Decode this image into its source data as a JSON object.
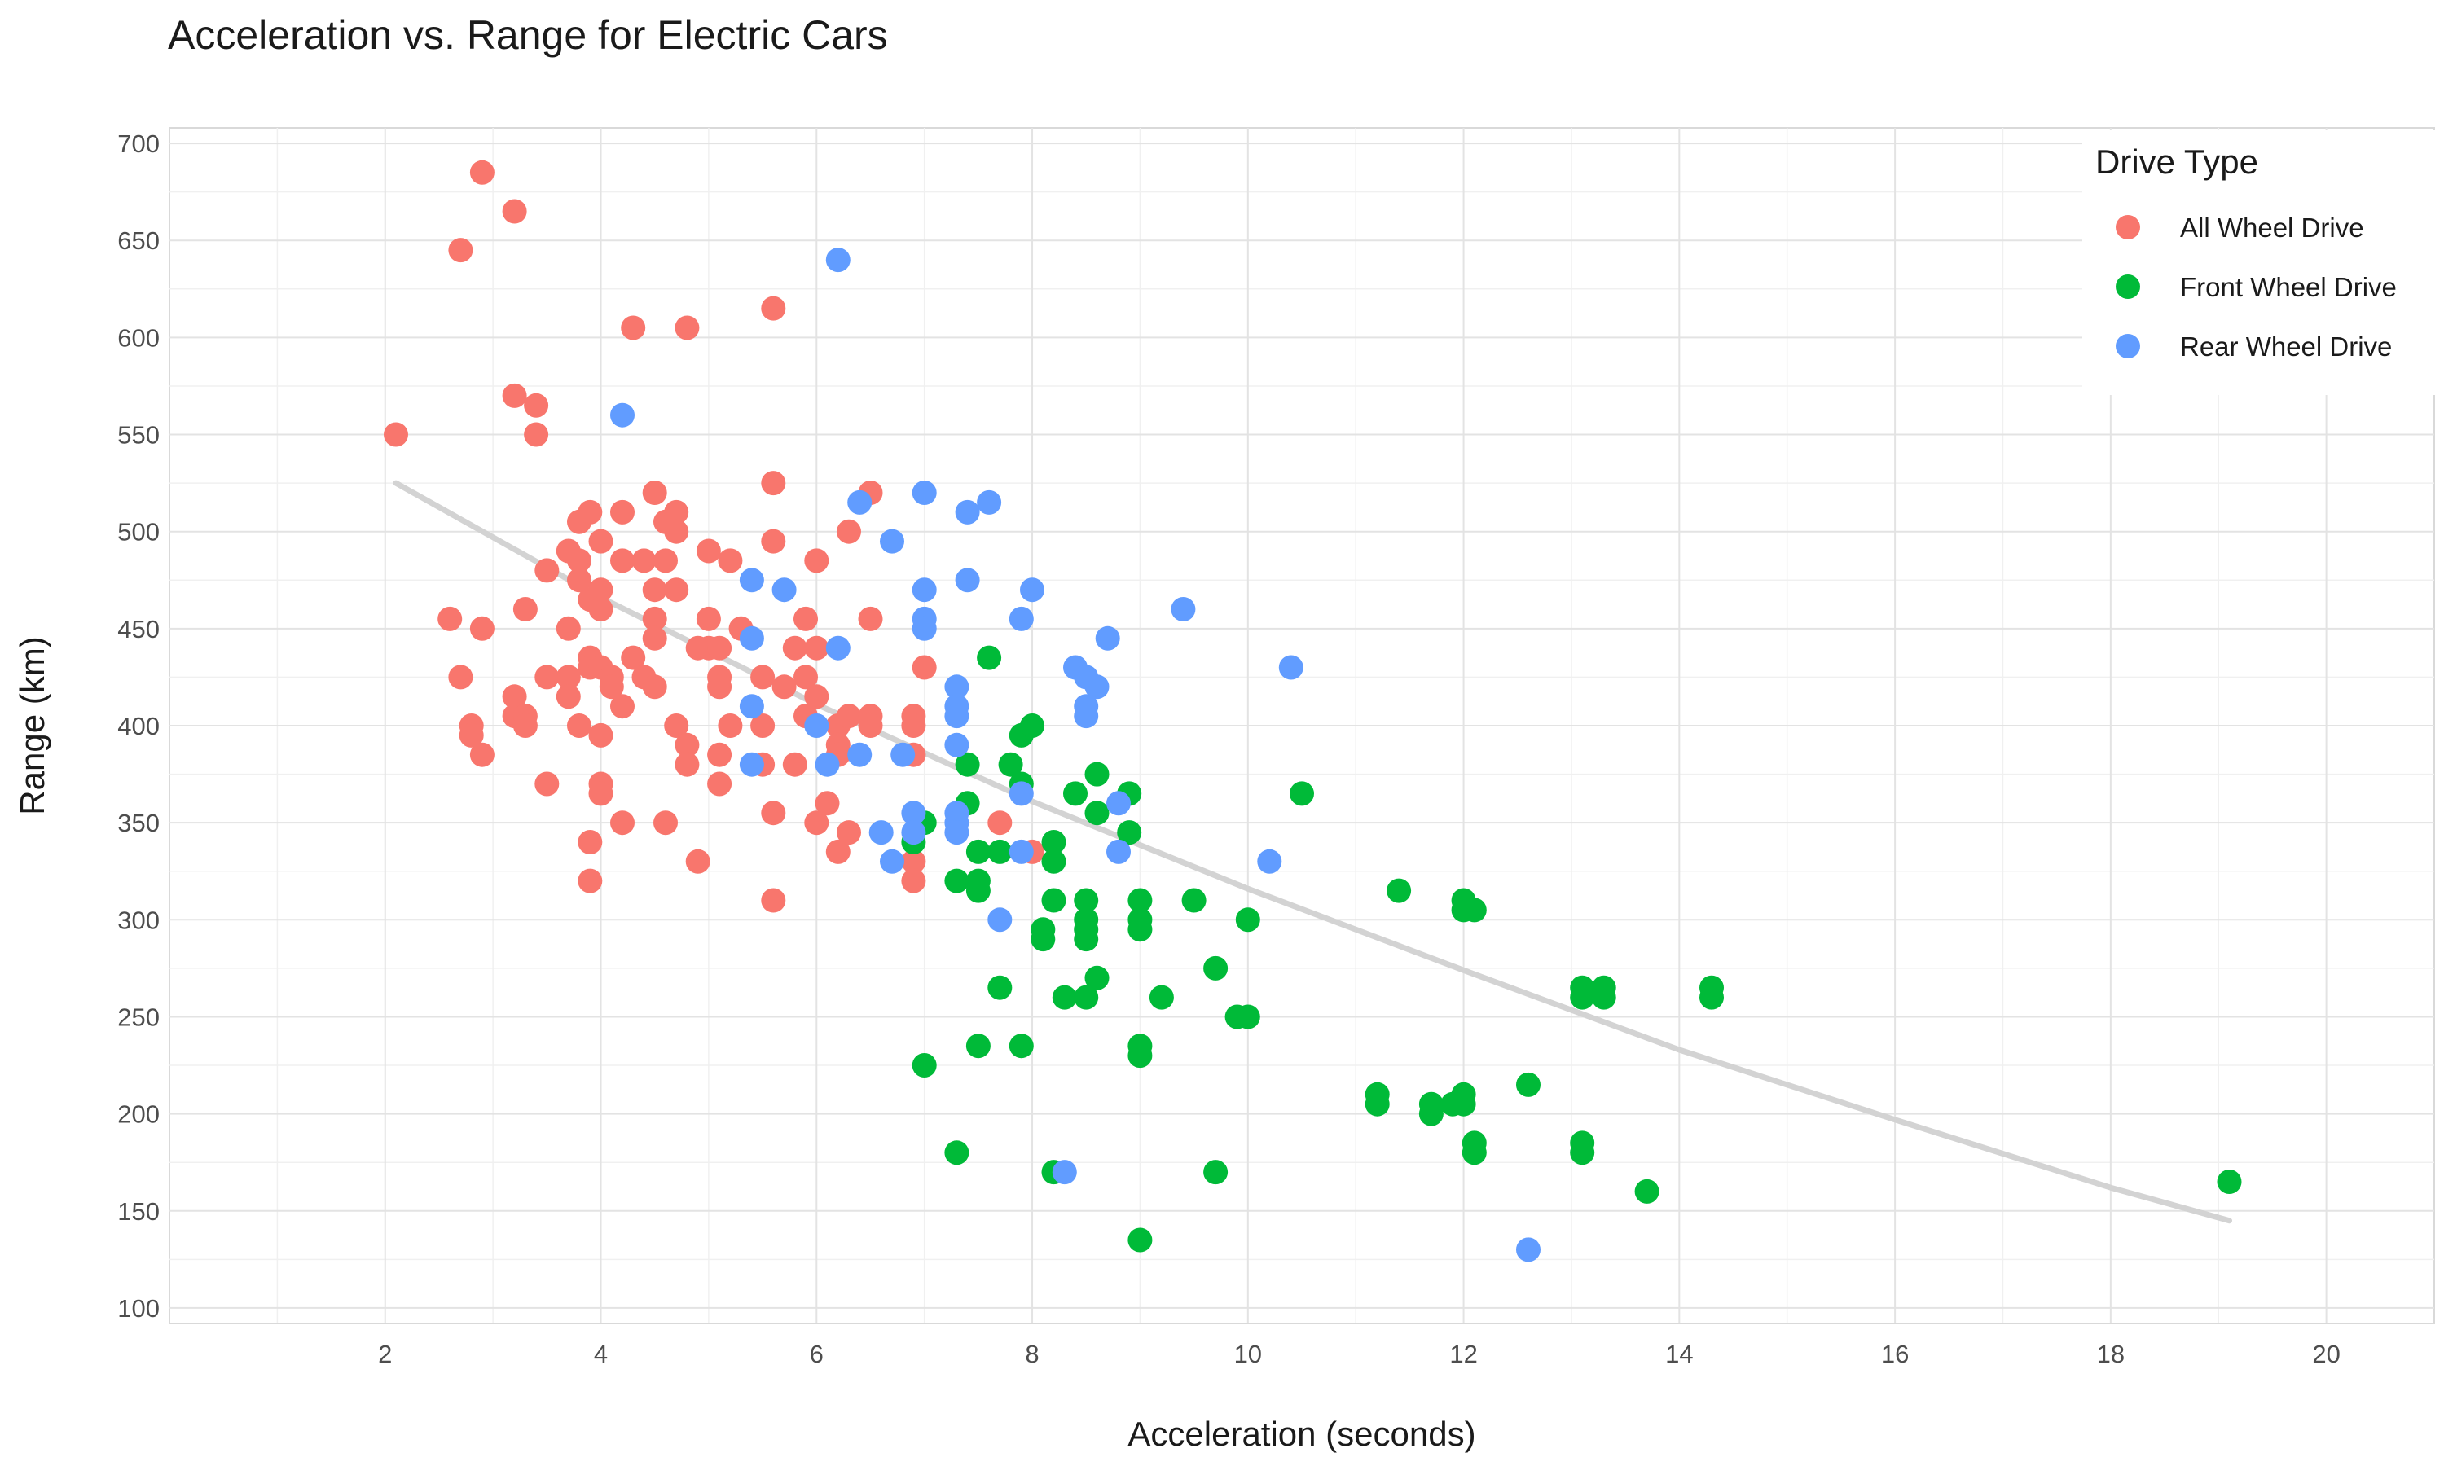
{
  "chart_data": {
    "type": "scatter",
    "title": "Acceleration vs. Range for Electric Cars",
    "xlabel": "Acceleration (seconds)",
    "ylabel": "Range (km)",
    "xlim": [
      0.0,
      21.0
    ],
    "ylim": [
      92,
      708
    ],
    "x_ticks": [
      2,
      4,
      6,
      8,
      10,
      12,
      14,
      16,
      18,
      20
    ],
    "y_ticks": [
      100,
      150,
      200,
      250,
      300,
      350,
      400,
      450,
      500,
      550,
      600,
      650,
      700
    ],
    "grid": true,
    "legend": {
      "title": "Drive Type",
      "placement": "top-right"
    },
    "series": [
      {
        "name": "All Wheel Drive",
        "color": "#F8766D",
        "points": [
          [
            2.1,
            550
          ],
          [
            2.6,
            455
          ],
          [
            2.7,
            645
          ],
          [
            2.7,
            425
          ],
          [
            2.8,
            400
          ],
          [
            2.8,
            395
          ],
          [
            2.9,
            685
          ],
          [
            2.9,
            450
          ],
          [
            2.9,
            385
          ],
          [
            3.2,
            665
          ],
          [
            3.2,
            570
          ],
          [
            3.2,
            415
          ],
          [
            3.2,
            405
          ],
          [
            3.3,
            460
          ],
          [
            3.3,
            405
          ],
          [
            3.3,
            400
          ],
          [
            3.4,
            565
          ],
          [
            3.4,
            550
          ],
          [
            3.5,
            480
          ],
          [
            3.5,
            425
          ],
          [
            3.5,
            370
          ],
          [
            3.7,
            490
          ],
          [
            3.7,
            450
          ],
          [
            3.7,
            425
          ],
          [
            3.7,
            415
          ],
          [
            3.8,
            505
          ],
          [
            3.8,
            485
          ],
          [
            3.8,
            475
          ],
          [
            3.8,
            400
          ],
          [
            3.9,
            510
          ],
          [
            3.9,
            465
          ],
          [
            3.9,
            435
          ],
          [
            3.9,
            430
          ],
          [
            3.9,
            340
          ],
          [
            3.9,
            320
          ],
          [
            4.0,
            495
          ],
          [
            4.0,
            470
          ],
          [
            4.0,
            460
          ],
          [
            4.0,
            430
          ],
          [
            4.0,
            395
          ],
          [
            4.0,
            370
          ],
          [
            4.0,
            365
          ],
          [
            4.1,
            425
          ],
          [
            4.1,
            420
          ],
          [
            4.2,
            510
          ],
          [
            4.2,
            485
          ],
          [
            4.2,
            410
          ],
          [
            4.2,
            350
          ],
          [
            4.3,
            605
          ],
          [
            4.3,
            435
          ],
          [
            4.4,
            485
          ],
          [
            4.4,
            425
          ],
          [
            4.5,
            520
          ],
          [
            4.5,
            470
          ],
          [
            4.5,
            455
          ],
          [
            4.5,
            445
          ],
          [
            4.5,
            420
          ],
          [
            4.6,
            505
          ],
          [
            4.6,
            485
          ],
          [
            4.6,
            350
          ],
          [
            4.7,
            510
          ],
          [
            4.7,
            500
          ],
          [
            4.7,
            470
          ],
          [
            4.7,
            400
          ],
          [
            4.8,
            605
          ],
          [
            4.8,
            390
          ],
          [
            4.8,
            380
          ],
          [
            4.9,
            440
          ],
          [
            4.9,
            330
          ],
          [
            5.0,
            490
          ],
          [
            5.0,
            455
          ],
          [
            5.0,
            440
          ],
          [
            5.1,
            440
          ],
          [
            5.1,
            425
          ],
          [
            5.1,
            420
          ],
          [
            5.1,
            385
          ],
          [
            5.1,
            370
          ],
          [
            5.2,
            485
          ],
          [
            5.2,
            400
          ],
          [
            5.3,
            450
          ],
          [
            5.5,
            425
          ],
          [
            5.5,
            400
          ],
          [
            5.5,
            380
          ],
          [
            5.6,
            615
          ],
          [
            5.6,
            525
          ],
          [
            5.6,
            495
          ],
          [
            5.6,
            355
          ],
          [
            5.6,
            310
          ],
          [
            5.7,
            420
          ],
          [
            5.8,
            440
          ],
          [
            5.8,
            380
          ],
          [
            5.9,
            455
          ],
          [
            5.9,
            425
          ],
          [
            5.9,
            405
          ],
          [
            6.0,
            485
          ],
          [
            6.0,
            440
          ],
          [
            6.0,
            415
          ],
          [
            6.0,
            350
          ],
          [
            6.1,
            360
          ],
          [
            6.2,
            400
          ],
          [
            6.2,
            390
          ],
          [
            6.2,
            385
          ],
          [
            6.2,
            335
          ],
          [
            6.3,
            500
          ],
          [
            6.3,
            405
          ],
          [
            6.3,
            345
          ],
          [
            6.5,
            520
          ],
          [
            6.5,
            455
          ],
          [
            6.5,
            405
          ],
          [
            6.5,
            400
          ],
          [
            6.9,
            405
          ],
          [
            6.9,
            400
          ],
          [
            6.9,
            385
          ],
          [
            6.9,
            330
          ],
          [
            6.9,
            320
          ],
          [
            7.0,
            430
          ],
          [
            7.7,
            350
          ],
          [
            8.0,
            335
          ]
        ]
      },
      {
        "name": "Front Wheel Drive",
        "color": "#00BA38",
        "points": [
          [
            6.9,
            340
          ],
          [
            7.0,
            350
          ],
          [
            7.0,
            225
          ],
          [
            7.3,
            320
          ],
          [
            7.3,
            180
          ],
          [
            7.4,
            380
          ],
          [
            7.4,
            360
          ],
          [
            7.5,
            335
          ],
          [
            7.5,
            320
          ],
          [
            7.5,
            315
          ],
          [
            7.5,
            235
          ],
          [
            7.6,
            435
          ],
          [
            7.7,
            335
          ],
          [
            7.7,
            265
          ],
          [
            7.8,
            380
          ],
          [
            7.9,
            395
          ],
          [
            7.9,
            370
          ],
          [
            7.9,
            235
          ],
          [
            8.0,
            400
          ],
          [
            8.1,
            295
          ],
          [
            8.1,
            290
          ],
          [
            8.2,
            340
          ],
          [
            8.2,
            330
          ],
          [
            8.2,
            310
          ],
          [
            8.2,
            170
          ],
          [
            8.3,
            260
          ],
          [
            8.4,
            365
          ],
          [
            8.5,
            310
          ],
          [
            8.5,
            300
          ],
          [
            8.5,
            295
          ],
          [
            8.5,
            290
          ],
          [
            8.5,
            260
          ],
          [
            8.6,
            375
          ],
          [
            8.6,
            355
          ],
          [
            8.6,
            270
          ],
          [
            8.9,
            365
          ],
          [
            8.9,
            345
          ],
          [
            9.0,
            310
          ],
          [
            9.0,
            300
          ],
          [
            9.0,
            295
          ],
          [
            9.0,
            235
          ],
          [
            9.0,
            230
          ],
          [
            9.0,
            135
          ],
          [
            9.2,
            260
          ],
          [
            9.5,
            310
          ],
          [
            9.7,
            275
          ],
          [
            9.7,
            170
          ],
          [
            9.9,
            250
          ],
          [
            10.0,
            300
          ],
          [
            10.0,
            250
          ],
          [
            10.5,
            365
          ],
          [
            11.2,
            210
          ],
          [
            11.2,
            205
          ],
          [
            11.4,
            315
          ],
          [
            11.7,
            205
          ],
          [
            11.7,
            200
          ],
          [
            11.9,
            205
          ],
          [
            12.0,
            310
          ],
          [
            12.0,
            305
          ],
          [
            12.0,
            210
          ],
          [
            12.0,
            205
          ],
          [
            12.1,
            305
          ],
          [
            12.1,
            185
          ],
          [
            12.1,
            180
          ],
          [
            12.6,
            215
          ],
          [
            13.1,
            265
          ],
          [
            13.1,
            260
          ],
          [
            13.1,
            185
          ],
          [
            13.1,
            180
          ],
          [
            13.3,
            265
          ],
          [
            13.3,
            260
          ],
          [
            13.7,
            160
          ],
          [
            14.3,
            265
          ],
          [
            14.3,
            260
          ],
          [
            19.1,
            165
          ]
        ]
      },
      {
        "name": "Rear Wheel Drive",
        "color": "#619CFF",
        "points": [
          [
            4.2,
            560
          ],
          [
            5.4,
            475
          ],
          [
            5.4,
            445
          ],
          [
            5.4,
            410
          ],
          [
            5.4,
            380
          ],
          [
            5.7,
            470
          ],
          [
            6.0,
            400
          ],
          [
            6.1,
            380
          ],
          [
            6.2,
            640
          ],
          [
            6.2,
            440
          ],
          [
            6.4,
            515
          ],
          [
            6.4,
            385
          ],
          [
            6.6,
            345
          ],
          [
            6.7,
            495
          ],
          [
            6.7,
            330
          ],
          [
            6.8,
            385
          ],
          [
            6.9,
            355
          ],
          [
            6.9,
            345
          ],
          [
            7.0,
            520
          ],
          [
            7.0,
            470
          ],
          [
            7.0,
            455
          ],
          [
            7.0,
            450
          ],
          [
            7.3,
            420
          ],
          [
            7.3,
            410
          ],
          [
            7.3,
            405
          ],
          [
            7.3,
            390
          ],
          [
            7.3,
            355
          ],
          [
            7.3,
            350
          ],
          [
            7.3,
            345
          ],
          [
            7.4,
            510
          ],
          [
            7.4,
            475
          ],
          [
            7.6,
            515
          ],
          [
            7.7,
            300
          ],
          [
            7.9,
            455
          ],
          [
            7.9,
            365
          ],
          [
            7.9,
            335
          ],
          [
            8.0,
            470
          ],
          [
            8.3,
            170
          ],
          [
            8.4,
            430
          ],
          [
            8.5,
            425
          ],
          [
            8.5,
            410
          ],
          [
            8.5,
            405
          ],
          [
            8.6,
            420
          ],
          [
            8.7,
            445
          ],
          [
            8.8,
            360
          ],
          [
            8.8,
            335
          ],
          [
            9.4,
            460
          ],
          [
            10.2,
            330
          ],
          [
            10.4,
            430
          ],
          [
            12.6,
            130
          ]
        ]
      }
    ],
    "trend_line": {
      "color": "#d3d3d3",
      "points": [
        [
          2.1,
          525
        ],
        [
          4,
          466
        ],
        [
          6,
          411
        ],
        [
          8,
          361
        ],
        [
          10,
          316
        ],
        [
          12,
          274
        ],
        [
          14,
          233
        ],
        [
          16,
          197
        ],
        [
          18,
          162
        ],
        [
          19.1,
          145
        ]
      ]
    }
  }
}
